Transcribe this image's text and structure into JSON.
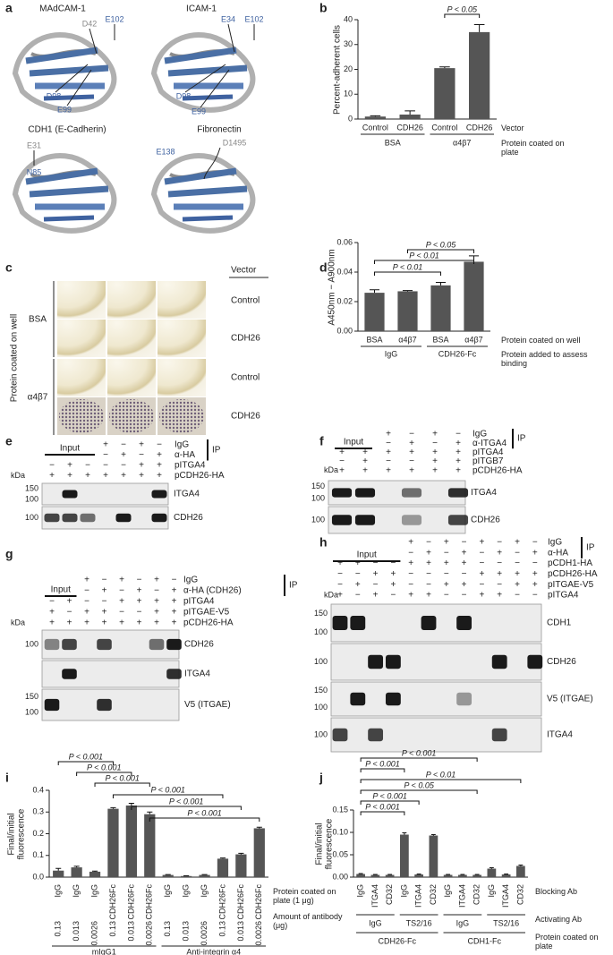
{
  "figure": {
    "a": {
      "letter": "a",
      "structures": [
        "MAdCAM-1",
        "ICAM-1",
        "CDH1 (E-Cadherin)",
        "Fibronectin"
      ],
      "residues": [
        "D42",
        "E102",
        "D98",
        "E99",
        "E34",
        "E102",
        "D98",
        "E99",
        "E31",
        "N85",
        "E138",
        "D1495"
      ]
    },
    "c": {
      "letter": "c",
      "header": "Vector",
      "side_label": "Protein coated on well",
      "coatings": [
        "BSA",
        "α4β7"
      ],
      "vectors": [
        "Control",
        "CDH26",
        "Control",
        "CDH26"
      ]
    },
    "blots": [
      {
        "letter": "e",
        "input": "Input",
        "ip": "IP",
        "kda": "kDa",
        "rows": [
          {
            "label": "IgG",
            "signs": [
              null,
              null,
              null,
              "+",
              "−",
              "+",
              "−"
            ]
          },
          {
            "label": "α-HA",
            "signs": [
              null,
              null,
              null,
              "−",
              "+",
              "−",
              "+"
            ]
          },
          {
            "label": "pITGA4",
            "signs": [
              "−",
              "+",
              "−",
              "−",
              "−",
              "+",
              "+"
            ]
          },
          {
            "label": "pCDH26-HA",
            "signs": [
              "+",
              "+",
              "+",
              "+",
              "+",
              "+",
              "+"
            ]
          }
        ],
        "blots": [
          {
            "label": "ITGA4",
            "markers": [
              150,
              100
            ]
          },
          {
            "label": "CDH26",
            "markers": [
              100
            ]
          }
        ]
      },
      {
        "letter": "f",
        "input": "Input",
        "ip": "IP",
        "kda": "kDa",
        "rows": [
          {
            "label": "IgG",
            "signs": [
              null,
              null,
              "+",
              "−",
              "+",
              "−"
            ]
          },
          {
            "label": "α-ITGA4",
            "signs": [
              null,
              null,
              "−",
              "+",
              "−",
              "+"
            ]
          },
          {
            "label": "pITGA4",
            "signs": [
              "+",
              "+",
              "+",
              "+",
              "+",
              "+"
            ]
          },
          {
            "label": "pITGB7",
            "signs": [
              "−",
              "+",
              "−",
              "−",
              "+",
              "+"
            ]
          },
          {
            "label": "pCDH26-HA",
            "signs": [
              "+",
              "+",
              "+",
              "+",
              "+",
              "+"
            ]
          }
        ],
        "blots": [
          {
            "label": "ITGA4",
            "markers": [
              150,
              100
            ]
          },
          {
            "label": "CDH26",
            "markers": [
              100
            ]
          }
        ]
      },
      {
        "letter": "g",
        "input": "Input",
        "ip": "IP",
        "kda": "kDa",
        "rows": [
          {
            "label": "IgG",
            "signs": [
              null,
              null,
              "+",
              "−",
              "+",
              "−",
              "+",
              "−"
            ]
          },
          {
            "label": "α-HA (CDH26)",
            "signs": [
              null,
              null,
              "−",
              "+",
              "−",
              "+",
              "−",
              "+"
            ]
          },
          {
            "label": "pITGA4",
            "signs": [
              "−",
              "+",
              "−",
              "−",
              "+",
              "+",
              "+",
              "+"
            ]
          },
          {
            "label": "pITGAE-V5",
            "signs": [
              "+",
              "−",
              "+",
              "+",
              "−",
              "−",
              "+",
              "+"
            ]
          },
          {
            "label": "pCDH26-HA",
            "signs": [
              "+",
              "+",
              "+",
              "+",
              "+",
              "+",
              "+",
              "+"
            ]
          }
        ],
        "blots": [
          {
            "label": "CDH26",
            "markers": [
              100
            ]
          },
          {
            "label": "ITGA4",
            "markers": []
          },
          {
            "label": "V5 (ITGAE)",
            "markers": [
              150,
              100
            ]
          }
        ]
      },
      {
        "letter": "h",
        "input": "Input",
        "ip": "IP",
        "kda": "kDa",
        "rows": [
          {
            "label": "IgG",
            "signs": [
              null,
              null,
              null,
              null,
              "+",
              "−",
              "+",
              "−",
              "+",
              "−",
              "+",
              "−"
            ]
          },
          {
            "label": "α-HA",
            "signs": [
              null,
              null,
              null,
              null,
              "−",
              "+",
              "−",
              "+",
              "−",
              "+",
              "−",
              "+"
            ]
          },
          {
            "label": "pCDH1-HA",
            "signs": [
              "+",
              "+",
              "−",
              "−",
              "+",
              "+",
              "+",
              "+",
              "−",
              "−",
              "−",
              "−"
            ]
          },
          {
            "label": "pCDH26-HA",
            "signs": [
              "−",
              "−",
              "+",
              "+",
              "−",
              "−",
              "−",
              "−",
              "+",
              "+",
              "+",
              "+"
            ]
          },
          {
            "label": "pITGAE-V5",
            "signs": [
              "−",
              "+",
              "−",
              "+",
              "−",
              "−",
              "+",
              "+",
              "−",
              "−",
              "+",
              "+"
            ]
          },
          {
            "label": "pITGA4",
            "signs": [
              "+",
              "−",
              "+",
              "−",
              "+",
              "+",
              "−",
              "−",
              "+",
              "+",
              "−",
              "−"
            ]
          }
        ],
        "blots": [
          {
            "label": "CDH1",
            "markers": [
              150,
              100
            ]
          },
          {
            "label": "CDH26",
            "markers": [
              100
            ]
          },
          {
            "label": "V5 (ITGAE)",
            "markers": [
              150,
              100
            ]
          },
          {
            "label": "ITGA4",
            "markers": [
              100
            ]
          }
        ]
      }
    ]
  },
  "chart_data": [
    {
      "type": "bar",
      "letter": "b",
      "ylabel": "Percent-adherent cells",
      "categories": [
        "Control",
        "CDH26",
        "Control",
        "CDH26"
      ],
      "values": [
        1,
        1.8,
        20.5,
        35
      ],
      "errors": [
        0.3,
        1.5,
        0.5,
        3
      ],
      "groups": [
        [
          "BSA",
          "α4β7"
        ]
      ],
      "row_labels": [
        "Vector",
        "Protein coated on plate"
      ],
      "annotations": [
        "P < 0.05"
      ],
      "ylim": [
        0,
        40
      ],
      "yticks": [
        0,
        10,
        20,
        30,
        40
      ],
      "color": "#555555"
    },
    {
      "type": "bar",
      "letter": "d",
      "ylabel": "A450nm − A900nm",
      "categories": [
        "BSA",
        "α4β7",
        "BSA",
        "α4β7"
      ],
      "values": [
        0.026,
        0.027,
        0.031,
        0.047
      ],
      "errors": [
        0.002,
        0.0005,
        0.002,
        0.004
      ],
      "groups": [
        [
          "IgG",
          "CDH26-Fc"
        ]
      ],
      "row_labels": [
        "Protein coated on well",
        "Protein added to assess binding"
      ],
      "annotations": [
        "P < 0.05",
        "P < 0.01",
        "P < 0.01"
      ],
      "ylim": [
        0,
        0.06
      ],
      "yticks": [
        {
          "value": 0,
          "label": "0.00"
        },
        0.02,
        0.04,
        0.06
      ],
      "color": "#555555"
    },
    {
      "type": "bar",
      "letter": "i",
      "ylabel": "Final/initial fluorescence",
      "categories": [
        "IgG",
        "IgG",
        "IgG",
        "CDH26Fc",
        "CDH26Fc",
        "CDH26Fc",
        "IgG",
        "IgG",
        "IgG",
        "CDH26Fc",
        "CDH26Fc",
        "CDH26Fc"
      ],
      "values": [
        0.03,
        0.045,
        0.025,
        0.315,
        0.33,
        0.29,
        0.01,
        0.005,
        0.01,
        0.085,
        0.105,
        0.225
      ],
      "errors": [
        0.01,
        0.005,
        0.003,
        0.005,
        0.01,
        0.01,
        0.002,
        0.001,
        0.002,
        0.003,
        0.005,
        0.005
      ],
      "amounts": [
        0.13,
        0.013,
        0.0026,
        0.13,
        0.013,
        0.0026,
        0.13,
        0.013,
        0.0026,
        0.13,
        0.013,
        0.0026
      ],
      "groups": [
        [
          "mIgG1",
          "Anti-integrin α4"
        ]
      ],
      "row_labels": [
        "Protein coated on plate (1 μg)",
        "Amount of antibody (μg)"
      ],
      "annotations": [
        "P < 0.001",
        "P < 0.001",
        "P < 0.001",
        "P < 0.001",
        "P < 0.001",
        "P < 0.001"
      ],
      "ylim": [
        0,
        0.4
      ],
      "yticks": [
        {
          "value": 0,
          "label": "0.0"
        },
        0.1,
        0.2,
        0.3,
        0.4
      ],
      "color": "#555555"
    },
    {
      "type": "bar",
      "letter": "j",
      "ylabel": "Final/initial fluorescence",
      "categories": [
        "IgG",
        "ITGA4",
        "CD32",
        "IgG",
        "ITGA4",
        "CD32",
        "IgG",
        "ITGA4",
        "CD32",
        "IgG",
        "ITGA4",
        "CD32"
      ],
      "values": [
        0.007,
        0.005,
        0.005,
        0.095,
        0.006,
        0.093,
        0.005,
        0.005,
        0.005,
        0.019,
        0.006,
        0.025
      ],
      "errors": [
        0.001,
        0.001,
        0.001,
        0.004,
        0.001,
        0.002,
        0.001,
        0.001,
        0.001,
        0.002,
        0.001,
        0.002
      ],
      "groups": [
        [
          "IgG",
          "TS2/16",
          "IgG",
          "TS2/16"
        ],
        [
          "CDH26-Fc",
          "CDH1-Fc"
        ]
      ],
      "row_labels": [
        "Blocking Ab",
        "Activating Ab",
        "Protein coated on plate"
      ],
      "annotations": [
        "P < 0.001",
        "P < 0.001",
        "P < 0.01",
        "P < 0.05",
        "P < 0.001",
        "P < 0.001"
      ],
      "ylim": [
        0,
        0.15
      ],
      "yticks": [
        {
          "value": 0,
          "label": "0.00"
        },
        0.05,
        {
          "value": 0.1,
          "label": "0.10"
        },
        0.15
      ],
      "color": "#555555"
    }
  ]
}
